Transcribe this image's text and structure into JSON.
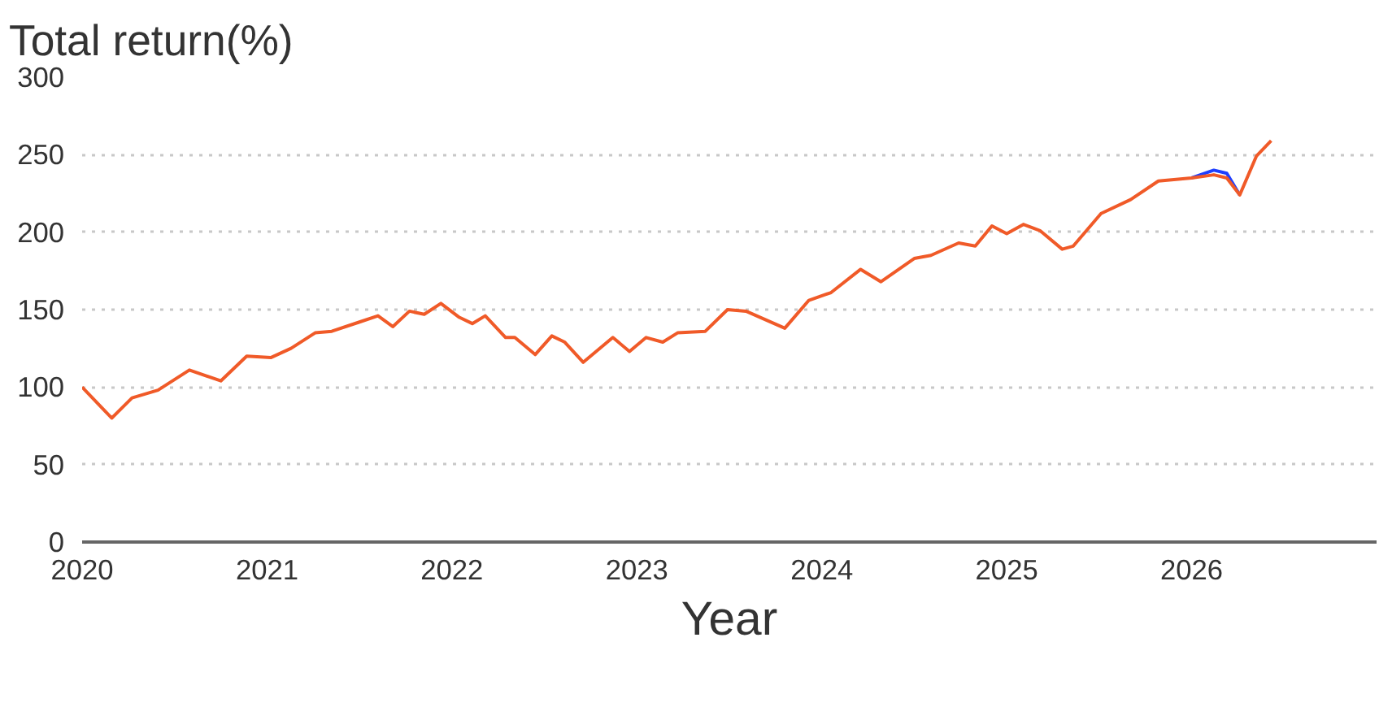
{
  "chart_data": {
    "type": "line",
    "title": "Total return(%)",
    "xlabel": "Year",
    "x": [
      2020.0,
      2020.16,
      2020.27,
      2020.41,
      2020.58,
      2020.75,
      2020.89,
      2021.02,
      2021.13,
      2021.26,
      2021.35,
      2021.5,
      2021.6,
      2021.68,
      2021.77,
      2021.85,
      2021.94,
      2022.04,
      2022.11,
      2022.18,
      2022.29,
      2022.34,
      2022.45,
      2022.54,
      2022.61,
      2022.71,
      2022.87,
      2022.96,
      2023.05,
      2023.14,
      2023.22,
      2023.37,
      2023.49,
      2023.59,
      2023.8,
      2023.93,
      2024.05,
      2024.21,
      2024.32,
      2024.5,
      2024.59,
      2024.74,
      2024.83,
      2024.92,
      2025.0,
      2025.09,
      2025.18,
      2025.3,
      2025.36,
      2025.51,
      2025.67,
      2025.82,
      2026.0,
      2026.12,
      2026.19,
      2026.26,
      2026.35,
      2026.43
    ],
    "series": [
      {
        "color": "#1f3fff",
        "values": [
          null,
          null,
          null,
          null,
          null,
          null,
          null,
          null,
          null,
          null,
          null,
          null,
          null,
          null,
          null,
          null,
          null,
          null,
          null,
          null,
          null,
          null,
          null,
          null,
          null,
          null,
          null,
          null,
          null,
          null,
          null,
          null,
          null,
          null,
          null,
          null,
          null,
          null,
          null,
          null,
          null,
          null,
          null,
          null,
          null,
          null,
          null,
          null,
          null,
          null,
          null,
          null,
          235,
          240,
          238,
          224,
          null,
          null
        ]
      },
      {
        "color": "#f05a28",
        "values": [
          100,
          80,
          93,
          98,
          111,
          104,
          120,
          119,
          125,
          135,
          136,
          142,
          146,
          139,
          149,
          147,
          154,
          145,
          141,
          146,
          132,
          132,
          121,
          133,
          129,
          116,
          132,
          123,
          132,
          129,
          135,
          136,
          150,
          149,
          138,
          156,
          161,
          176,
          168,
          183,
          185,
          193,
          191,
          204,
          199,
          205,
          201,
          189,
          191,
          212,
          221,
          233,
          235,
          237,
          235,
          224,
          249,
          259
        ]
      }
    ],
    "xlim": [
      2020,
      2027
    ],
    "xticks": [
      2020,
      2021,
      2022,
      2023,
      2024,
      2025,
      2026
    ],
    "ylim": [
      0,
      300
    ],
    "yticks": [
      0,
      50,
      100,
      150,
      200,
      250,
      300
    ],
    "grid": "y",
    "line_style": "solid"
  }
}
